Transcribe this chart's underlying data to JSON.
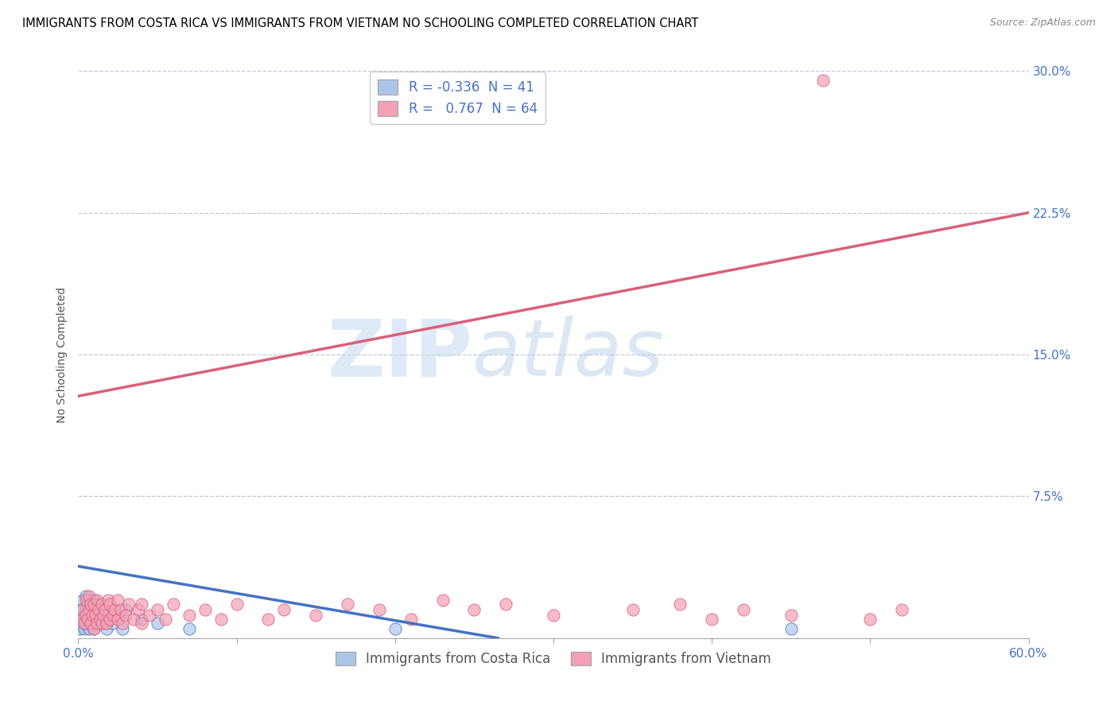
{
  "title": "IMMIGRANTS FROM COSTA RICA VS IMMIGRANTS FROM VIETNAM NO SCHOOLING COMPLETED CORRELATION CHART",
  "source": "Source: ZipAtlas.com",
  "ylabel": "No Schooling Completed",
  "xlim": [
    0.0,
    0.6
  ],
  "ylim": [
    0.0,
    0.3
  ],
  "xticks": [
    0.0,
    0.1,
    0.2,
    0.3,
    0.4,
    0.5,
    0.6
  ],
  "xtick_labels": [
    "0.0%",
    "",
    "",
    "",
    "",
    "",
    "60.0%"
  ],
  "yticks": [
    0.0,
    0.075,
    0.15,
    0.225,
    0.3
  ],
  "ytick_labels": [
    "",
    "7.5%",
    "15.0%",
    "22.5%",
    "30.0%"
  ],
  "legend1_R": "-0.336",
  "legend1_N": "41",
  "legend2_R": "0.767",
  "legend2_N": "64",
  "color_cr": "#adc6e8",
  "color_vn": "#f4a0b5",
  "line_color_cr": "#4472c4",
  "line_color_vn": "#d9607a",
  "watermark_text": "ZIP",
  "watermark_text2": "atlas",
  "background_color": "#ffffff",
  "grid_color": "#c0c8d8",
  "title_fontsize": 10.5,
  "axis_label_fontsize": 10,
  "tick_fontsize": 11,
  "legend_fontsize": 12,
  "cr_line_x0": 0.0,
  "cr_line_y0": 0.038,
  "cr_line_x1": 0.265,
  "cr_line_y1": 0.0,
  "vn_line_x0": 0.0,
  "vn_line_y0": 0.128,
  "vn_line_x1": 0.6,
  "vn_line_y1": 0.225,
  "cr_points_x": [
    0.001,
    0.002,
    0.002,
    0.003,
    0.003,
    0.004,
    0.004,
    0.005,
    0.005,
    0.005,
    0.006,
    0.006,
    0.007,
    0.007,
    0.007,
    0.008,
    0.008,
    0.009,
    0.009,
    0.01,
    0.01,
    0.01,
    0.011,
    0.012,
    0.012,
    0.013,
    0.014,
    0.015,
    0.016,
    0.017,
    0.018,
    0.02,
    0.022,
    0.025,
    0.028,
    0.03,
    0.04,
    0.05,
    0.07,
    0.2,
    0.45
  ],
  "cr_points_y": [
    0.005,
    0.008,
    0.015,
    0.01,
    0.02,
    0.005,
    0.012,
    0.008,
    0.015,
    0.022,
    0.01,
    0.018,
    0.005,
    0.012,
    0.02,
    0.008,
    0.015,
    0.01,
    0.018,
    0.005,
    0.012,
    0.02,
    0.015,
    0.008,
    0.018,
    0.012,
    0.01,
    0.015,
    0.008,
    0.012,
    0.005,
    0.01,
    0.008,
    0.012,
    0.005,
    0.015,
    0.01,
    0.008,
    0.005,
    0.005,
    0.005
  ],
  "vn_points_x": [
    0.002,
    0.003,
    0.004,
    0.005,
    0.005,
    0.006,
    0.007,
    0.007,
    0.008,
    0.008,
    0.009,
    0.01,
    0.01,
    0.011,
    0.012,
    0.012,
    0.013,
    0.014,
    0.015,
    0.015,
    0.016,
    0.017,
    0.018,
    0.019,
    0.02,
    0.02,
    0.022,
    0.023,
    0.025,
    0.025,
    0.027,
    0.028,
    0.03,
    0.032,
    0.035,
    0.038,
    0.04,
    0.04,
    0.045,
    0.05,
    0.055,
    0.06,
    0.07,
    0.08,
    0.09,
    0.1,
    0.12,
    0.13,
    0.15,
    0.17,
    0.19,
    0.21,
    0.23,
    0.25,
    0.27,
    0.3,
    0.35,
    0.38,
    0.4,
    0.42,
    0.45,
    0.47,
    0.5,
    0.52
  ],
  "vn_points_y": [
    0.01,
    0.015,
    0.008,
    0.012,
    0.02,
    0.01,
    0.015,
    0.022,
    0.008,
    0.018,
    0.012,
    0.005,
    0.018,
    0.012,
    0.008,
    0.02,
    0.015,
    0.01,
    0.008,
    0.018,
    0.012,
    0.015,
    0.008,
    0.02,
    0.01,
    0.018,
    0.012,
    0.015,
    0.01,
    0.02,
    0.015,
    0.008,
    0.012,
    0.018,
    0.01,
    0.015,
    0.008,
    0.018,
    0.012,
    0.015,
    0.01,
    0.018,
    0.012,
    0.015,
    0.01,
    0.018,
    0.01,
    0.015,
    0.012,
    0.018,
    0.015,
    0.01,
    0.02,
    0.015,
    0.018,
    0.012,
    0.015,
    0.018,
    0.01,
    0.015,
    0.012,
    0.295,
    0.01,
    0.015
  ]
}
